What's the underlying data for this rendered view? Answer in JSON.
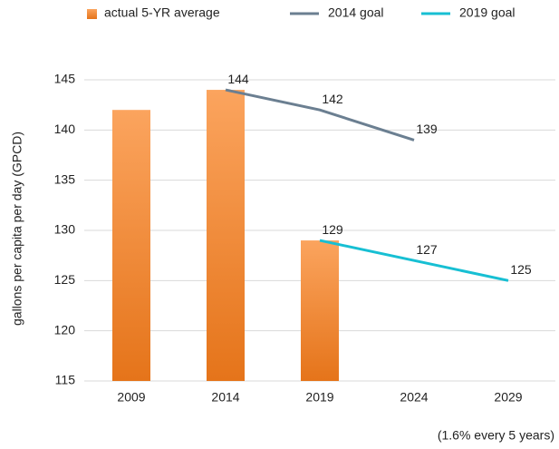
{
  "chart_data": {
    "type": "bar",
    "categories": [
      "2009",
      "2014",
      "2019",
      "2024",
      "2029"
    ],
    "series": [
      {
        "name": "actual 5-YR average",
        "type": "bar",
        "color": "#f08a2e",
        "values": [
          142,
          144,
          129,
          null,
          null
        ]
      },
      {
        "name": "2014 goal",
        "type": "line",
        "color": "#6b7f91",
        "values": [
          null,
          144,
          142,
          139,
          null
        ]
      },
      {
        "name": "2019 goal",
        "type": "line",
        "color": "#17bfd3",
        "values": [
          null,
          null,
          129,
          127,
          125
        ]
      }
    ],
    "y_label": "gallons per capita per day (GPCD)",
    "annotation": "(1.6% every 5 years)",
    "ylim": [
      115,
      145
    ],
    "yticks": [
      115,
      120,
      125,
      130,
      135,
      140,
      145
    ],
    "grid": true,
    "legend": "top"
  }
}
